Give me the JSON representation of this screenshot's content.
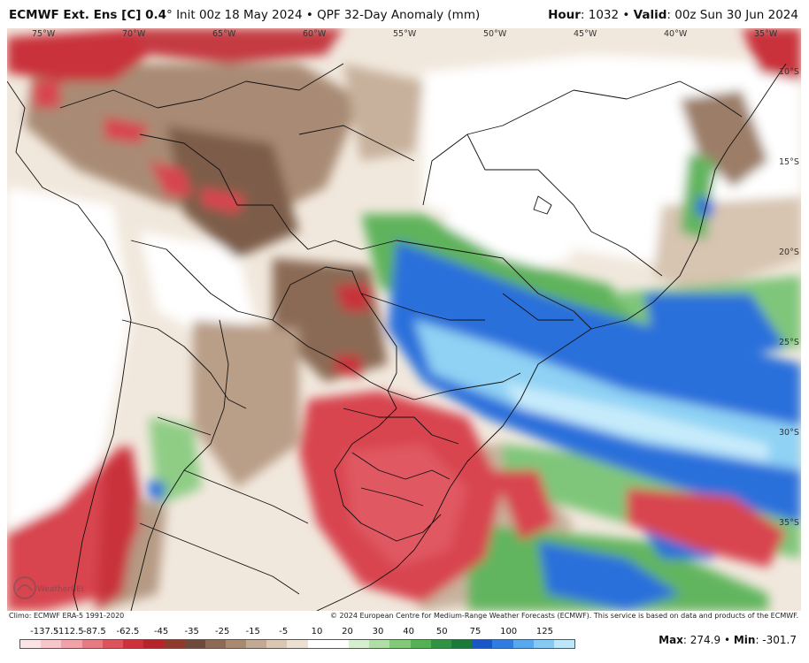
{
  "header": {
    "model": "ECMWF Ext. Ens [C] 0.4",
    "deg": "°",
    "init": " Init 00z 18 May 2024 • QPF 32-Day Anomaly (mm)",
    "hour_label": "Hour",
    "hour_value": ": 1032 • ",
    "valid_label": "Valid",
    "valid_value": ": 00z Sun 30 Jun 2024"
  },
  "map": {
    "longitudes": [
      "75°W",
      "70°W",
      "65°W",
      "60°W",
      "55°W",
      "50°W",
      "45°W",
      "40°W",
      "35°W"
    ],
    "latitudes": [
      "10°S",
      "15°S",
      "20°S",
      "25°S",
      "30°S",
      "35°S"
    ],
    "watermark": "WeatherBELL"
  },
  "footer": {
    "climo": "Climo: ECMWF ERA-5 1991-2020",
    "copyright": "© 2024 European Centre for Medium-Range Weather Forecasts (ECMWF). This service is based on data and products of the ECMWF."
  },
  "colorbar": {
    "labels": [
      "-137.5",
      "-112.5",
      "-87.5",
      "-62.5",
      "-45",
      "-35",
      "-25",
      "-15",
      "-5",
      "10",
      "20",
      "30",
      "40",
      "50",
      "75",
      "100",
      "125"
    ],
    "colors": [
      "#fbe4e6",
      "#f7c6ca",
      "#f0a2a8",
      "#e77b84",
      "#dc525d",
      "#cf313c",
      "#b5232c",
      "#8e3a2c",
      "#6e4a3a",
      "#8c6a55",
      "#a88a72",
      "#c2a993",
      "#d9c6b3",
      "#ece0d3",
      "#ffffff",
      "#ffffff",
      "#d6efd0",
      "#afdfa6",
      "#82c97a",
      "#55b156",
      "#2f9343",
      "#1a7a3a",
      "#1b56c7",
      "#2f7de0",
      "#57a8ec",
      "#86c9f3",
      "#bde6fa"
    ]
  },
  "stats": {
    "max_label": "Max",
    "max_value": ": 274.9 • ",
    "min_label": "Min",
    "min_value": ": -301.7"
  }
}
